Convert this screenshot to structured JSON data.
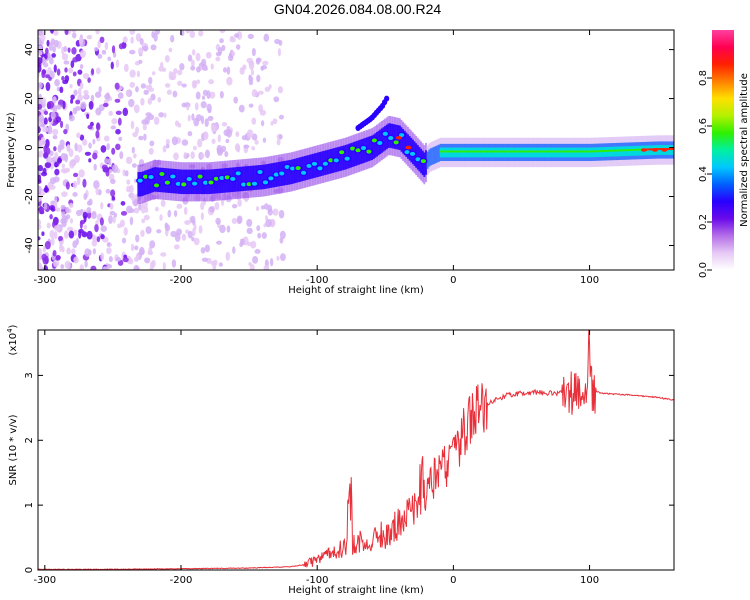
{
  "title": "GN04.2026.084.08.00.R24",
  "chart_data": [
    {
      "type": "heatmap",
      "title": "GN04.2026.084.08.00.R24",
      "xlabel": "Height of straight line (km)",
      "ylabel": "Frequency (Hz)",
      "xlim": [
        -305,
        162
      ],
      "ylim": [
        -50,
        48
      ],
      "xticks": [
        "-300",
        "-200",
        "-100",
        "0",
        "100"
      ],
      "yticks": [
        "-40",
        "-20",
        "0",
        "20",
        "40"
      ],
      "colorbar": {
        "label": "Normalized spectral amplitude",
        "range": [
          0,
          1
        ],
        "ticks": [
          "0.0",
          "0.2",
          "0.4",
          "0.6",
          "0.8"
        ],
        "colors": [
          "#ffffff",
          "#e6c8f5",
          "#b46ee8",
          "#6a0aea",
          "#2800ff",
          "#0060ff",
          "#00c8ff",
          "#00f0a0",
          "#30f000",
          "#b4f000",
          "#ffe000",
          "#ff8000",
          "#ff2000",
          "#ff0050",
          "#ff40a0"
        ]
      },
      "ridge": {
        "x": [
          -230,
          -220,
          -200,
          -180,
          -160,
          -140,
          -120,
          -100,
          -80,
          -60,
          -48,
          -40,
          -30,
          -22,
          -18,
          -10,
          0,
          50,
          100,
          150,
          162
        ],
        "y": [
          -15,
          -13,
          -14,
          -14,
          -13,
          -12,
          -10,
          -7,
          -4,
          0,
          5,
          4,
          -2,
          -7,
          -4,
          -2,
          -2,
          -2,
          -2,
          -1,
          -1
        ]
      },
      "secondary_branch": {
        "x": [
          -70,
          -60,
          -52,
          -48
        ],
        "y": [
          8,
          12,
          17,
          21
        ]
      }
    },
    {
      "type": "line",
      "xlabel": "Height of straight line (km)",
      "ylabel": "SNR (10 * v/v)",
      "y_scale_label": "(x10",
      "y_scale_exponent": "4",
      "xlim": [
        -305,
        162
      ],
      "ylim": [
        0,
        3.7
      ],
      "xticks": [
        "-300",
        "-200",
        "-100",
        "0",
        "100"
      ],
      "yticks": [
        "0",
        "1",
        "2",
        "3"
      ],
      "series": [
        {
          "name": "SNR",
          "color": "#e8303a",
          "x": [
            -305,
            -250,
            -200,
            -150,
            -120,
            -110,
            -100,
            -90,
            -80,
            -70,
            -60,
            -50,
            -40,
            -30,
            -20,
            -10,
            0,
            10,
            20,
            30,
            40,
            50,
            60,
            70,
            80,
            90,
            95,
            100,
            105,
            110,
            120,
            130,
            140,
            150,
            162
          ],
          "y": [
            0.01,
            0.01,
            0.02,
            0.03,
            0.05,
            0.08,
            0.15,
            0.25,
            0.35,
            0.42,
            0.45,
            0.55,
            0.7,
            0.95,
            1.2,
            1.5,
            1.8,
            2.2,
            2.5,
            2.62,
            2.7,
            2.72,
            2.74,
            2.73,
            2.72,
            2.72,
            2.75,
            2.8,
            2.75,
            2.72,
            2.71,
            2.7,
            2.68,
            2.66,
            2.62
          ]
        }
      ]
    }
  ]
}
